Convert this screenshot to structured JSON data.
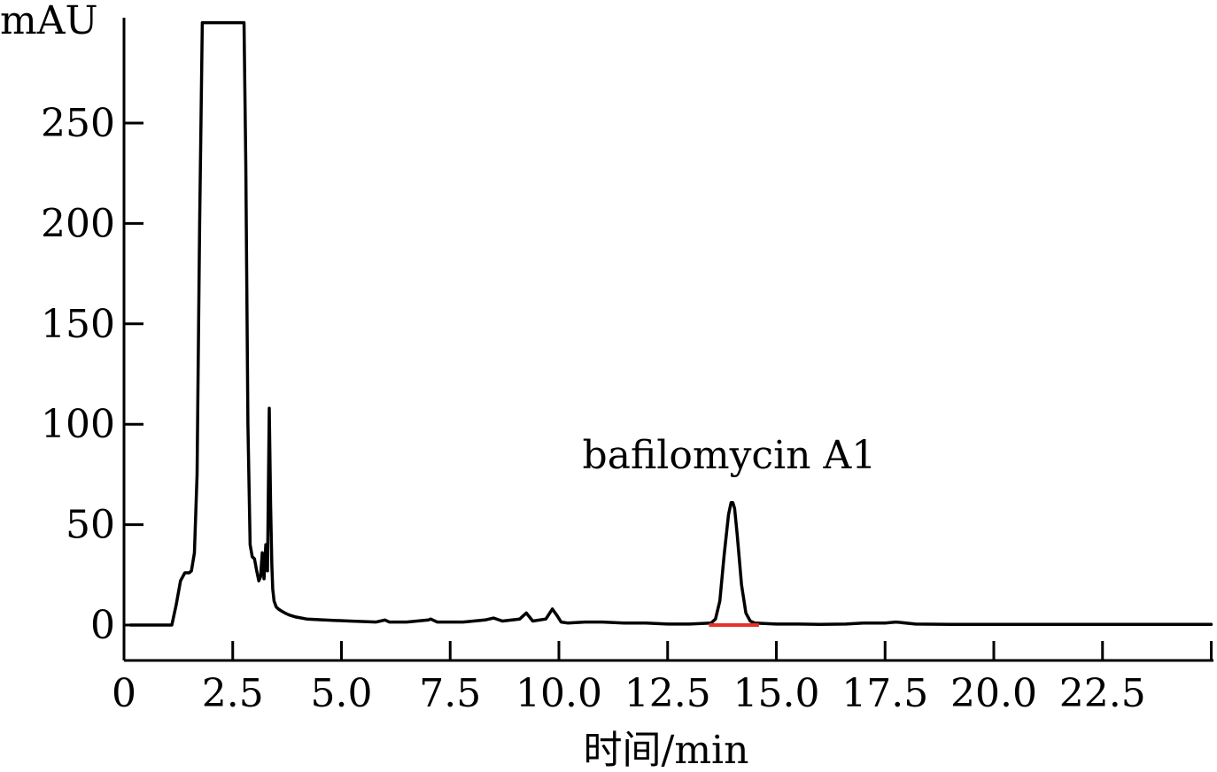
{
  "chart_data": {
    "type": "line",
    "title": "",
    "xlabel": "时间/min",
    "ylabel": "mAU",
    "xlim": [
      0,
      25
    ],
    "ylim": [
      -18,
      300
    ],
    "x_ticks": [
      0,
      2.5,
      5.0,
      7.5,
      10.0,
      12.5,
      15.0,
      17.5,
      20.0,
      22.5
    ],
    "x_tick_labels": [
      "0",
      "2.5",
      "5.0",
      "7.5",
      "10.0",
      "12.5",
      "15.0",
      "17.5",
      "20.0",
      "22.5"
    ],
    "y_ticks": [
      0,
      50,
      100,
      150,
      200,
      250
    ],
    "y_tick_labels": [
      "0",
      "50",
      "100",
      "150",
      "200",
      "250"
    ],
    "grid": false,
    "legend": "none",
    "annotations": [
      {
        "text": "bafilomycin A1",
        "x": 14.0,
        "y": 75
      }
    ],
    "integration_baseline": {
      "x_start": 13.45,
      "x_end": 14.6,
      "y": 0,
      "color": "#e8302a"
    },
    "series": [
      {
        "color": "#000000",
        "x": [
          0.15,
          1.1,
          1.2,
          1.3,
          1.4,
          1.5,
          1.55,
          1.62,
          1.68,
          1.74,
          1.8,
          1.84,
          1.88,
          2.0,
          2.2,
          2.5,
          2.68,
          2.76,
          2.8,
          2.85,
          2.9,
          2.95,
          3.0,
          3.05,
          3.1,
          3.14,
          3.18,
          3.22,
          3.26,
          3.3,
          3.34,
          3.37,
          3.4,
          3.42,
          3.45,
          3.5,
          3.55,
          3.62,
          3.7,
          3.8,
          3.95,
          4.2,
          4.6,
          5.2,
          5.8,
          6.0,
          6.1,
          6.5,
          7.0,
          7.05,
          7.2,
          7.8,
          8.3,
          8.5,
          8.7,
          9.1,
          9.25,
          9.4,
          9.7,
          9.85,
          9.95,
          10.05,
          10.2,
          10.6,
          11.0,
          11.5,
          12.0,
          12.5,
          13.0,
          13.5,
          13.6,
          13.7,
          13.8,
          13.9,
          13.96,
          14.0,
          14.04,
          14.1,
          14.2,
          14.3,
          14.4,
          14.5,
          15.0,
          15.5,
          16.0,
          16.6,
          17.0,
          17.5,
          17.75,
          18.2,
          19.0,
          20.0,
          21.0,
          22.0,
          23.0,
          24.0,
          25.0
        ],
        "values": [
          0,
          0,
          10,
          22,
          26,
          26,
          27,
          36,
          75,
          200,
          300,
          300,
          300,
          300,
          300,
          300,
          300,
          300,
          230,
          100,
          40,
          34,
          33,
          27,
          22,
          24,
          36,
          23,
          40,
          27,
          108,
          60,
          30,
          18,
          12,
          9,
          8,
          7,
          6,
          5,
          4,
          3,
          2.5,
          2,
          1.5,
          2.5,
          1.5,
          1.5,
          2.5,
          3,
          1.5,
          1.5,
          2.5,
          3.5,
          2,
          3,
          6,
          2,
          3,
          8,
          5,
          1.5,
          1,
          1.5,
          1.5,
          1,
          1,
          0.5,
          0.5,
          1,
          3,
          12,
          35,
          55,
          61,
          61,
          58,
          45,
          20,
          6,
          2,
          1,
          0.5,
          0.5,
          0.3,
          0.5,
          1,
          1,
          1.5,
          0.5,
          0.3,
          0.3,
          0.3,
          0.3,
          0.3,
          0.3,
          0.3
        ]
      }
    ]
  }
}
